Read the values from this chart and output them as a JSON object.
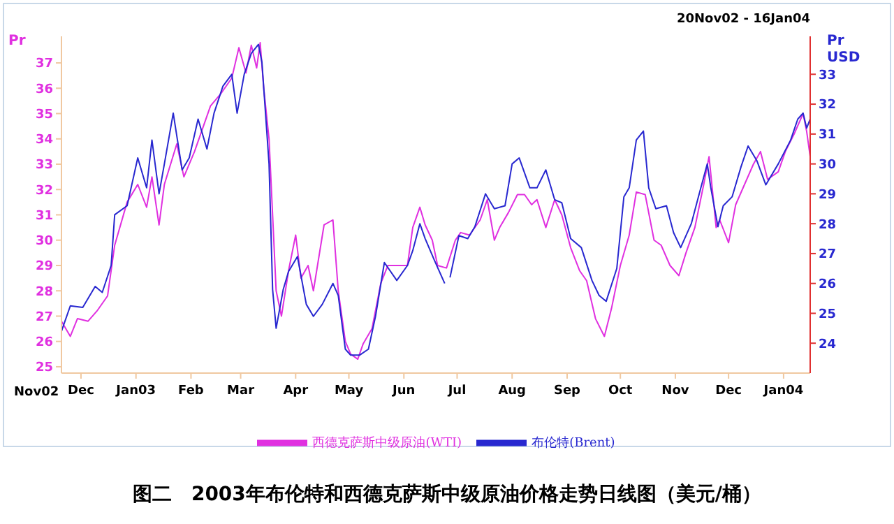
{
  "chart_data": {
    "type": "line",
    "title": "图二　2003年布伦特和西德克萨斯中级原油价格走势日线图（美元/桶）",
    "annotations": [
      "20Nov02 - 16Jan04",
      "Nov02"
    ],
    "ylabel": "Pr",
    "y2label": "Pr USD",
    "xlim": [
      "2002-11-20",
      "2004-01-16"
    ],
    "xticks": [
      {
        "value": "2002-12-01",
        "label": "Dec"
      },
      {
        "value": "2003-01-01",
        "label": "Jan03"
      },
      {
        "value": "2003-02-01",
        "label": "Feb"
      },
      {
        "value": "2003-03-01",
        "label": "Mar"
      },
      {
        "value": "2003-04-01",
        "label": "Apr"
      },
      {
        "value": "2003-05-01",
        "label": "May"
      },
      {
        "value": "2003-06-01",
        "label": "Jun"
      },
      {
        "value": "2003-07-01",
        "label": "Jul"
      },
      {
        "value": "2003-08-01",
        "label": "Aug"
      },
      {
        "value": "2003-09-01",
        "label": "Sep"
      },
      {
        "value": "2003-10-01",
        "label": "Oct"
      },
      {
        "value": "2003-11-01",
        "label": "Nov"
      },
      {
        "value": "2003-12-01",
        "label": "Dec"
      },
      {
        "value": "2004-01-01",
        "label": "Jan04"
      }
    ],
    "ylim": [
      24.75,
      38.05
    ],
    "yticks": [
      25,
      26,
      27,
      28,
      29,
      30,
      31,
      32,
      33,
      34,
      35,
      36,
      37
    ],
    "y2lim": [
      23.0,
      34.27
    ],
    "y2ticks": [
      24,
      25,
      26,
      27,
      28,
      29,
      30,
      31,
      32,
      33
    ],
    "grid": false,
    "legend": "bottom",
    "marker": "none",
    "line_style": "solid",
    "series": [
      {
        "name": "西德克萨斯中级原油(WTI)",
        "color": "#e030e0",
        "x": [
          "2002-11-20",
          "2002-11-25",
          "2002-11-29",
          "2002-12-05",
          "2002-12-10",
          "2002-12-16",
          "2002-12-20",
          "2002-12-27",
          "2003-01-02",
          "2003-01-07",
          "2003-01-10",
          "2003-01-14",
          "2003-01-17",
          "2003-01-24",
          "2003-01-28",
          "2003-02-03",
          "2003-02-07",
          "2003-02-12",
          "2003-02-18",
          "2003-02-24",
          "2003-02-28",
          "2003-03-04",
          "2003-03-07",
          "2003-03-10",
          "2003-03-12",
          "2003-03-14",
          "2003-03-17",
          "2003-03-19",
          "2003-03-21",
          "2003-03-24",
          "2003-03-28",
          "2003-04-01",
          "2003-04-04",
          "2003-04-08",
          "2003-04-11",
          "2003-04-17",
          "2003-04-22",
          "2003-04-25",
          "2003-04-29",
          "2003-05-02",
          "2003-05-06",
          "2003-05-09",
          "2003-05-14",
          "2003-05-19",
          "2003-05-23",
          "2003-05-28",
          "2003-06-03",
          "2003-06-06",
          "2003-06-10",
          "2003-06-13",
          "2003-06-17",
          "2003-06-20",
          "2003-06-25",
          "2003-06-30",
          "2003-07-03",
          "2003-07-08",
          "2003-07-14",
          "2003-07-18",
          "2003-07-22",
          "2003-07-25",
          "2003-07-30",
          "2003-08-04",
          "2003-08-08",
          "2003-08-12",
          "2003-08-15",
          "2003-08-20",
          "2003-08-25",
          "2003-08-29",
          "2003-09-03",
          "2003-09-08",
          "2003-09-12",
          "2003-09-17",
          "2003-09-22",
          "2003-09-26",
          "2003-10-01",
          "2003-10-06",
          "2003-10-10",
          "2003-10-15",
          "2003-10-20",
          "2003-10-24",
          "2003-10-29",
          "2003-11-03",
          "2003-11-07",
          "2003-11-12",
          "2003-11-17",
          "2003-11-20",
          "2003-11-24",
          "2003-11-26",
          "2003-12-01",
          "2003-12-05",
          "2003-12-10",
          "2003-12-15",
          "2003-12-19",
          "2003-12-23",
          "2003-12-29",
          "2004-01-02",
          "2004-01-07",
          "2004-01-12",
          "2004-01-14",
          "2004-01-16"
        ],
        "values": [
          26.8,
          26.2,
          26.9,
          26.8,
          27.2,
          27.8,
          29.8,
          31.5,
          32.2,
          31.3,
          32.5,
          30.6,
          32.2,
          33.8,
          32.5,
          33.5,
          34.3,
          35.3,
          35.8,
          36.4,
          37.6,
          36.6,
          37.7,
          36.8,
          37.8,
          36.0,
          34.0,
          31.0,
          28.0,
          27.0,
          28.8,
          30.2,
          28.5,
          29.0,
          28.0,
          30.6,
          30.8,
          28.0,
          26.0,
          25.5,
          25.3,
          25.9,
          26.5,
          28.3,
          29.0,
          29.0,
          29.0,
          30.5,
          31.3,
          30.6,
          30.0,
          29.0,
          28.9,
          30.0,
          30.3,
          30.2,
          30.8,
          31.6,
          30.0,
          30.5,
          31.1,
          31.8,
          31.8,
          31.4,
          31.6,
          30.5,
          31.6,
          31.0,
          29.7,
          28.8,
          28.4,
          26.9,
          26.2,
          27.3,
          29.0,
          30.2,
          31.9,
          31.8,
          30.0,
          29.8,
          29.0,
          28.6,
          29.5,
          30.5,
          32.2,
          33.3,
          30.5,
          30.8,
          29.9,
          31.4,
          32.2,
          33.0,
          33.5,
          32.4,
          32.7,
          33.5,
          34.2,
          35.0,
          34.3,
          33.3
        ]
      },
      {
        "name": "布伦特(Brent)",
        "color": "#2828d0",
        "axis": "y2",
        "x": [
          "2002-11-20",
          "2002-11-25",
          "2002-12-02",
          "2002-12-09",
          "2002-12-13",
          "2002-12-18",
          "2002-12-20",
          "2002-12-27",
          "2003-01-02",
          "2003-01-07",
          "2003-01-10",
          "2003-01-14",
          "2003-01-17",
          "2003-01-22",
          "2003-01-27",
          "2003-01-31",
          "2003-02-05",
          "2003-02-10",
          "2003-02-14",
          "2003-02-19",
          "2003-02-24",
          "2003-02-27",
          "2003-03-03",
          "2003-03-07",
          "2003-03-11",
          "2003-03-13",
          "2003-03-17",
          "2003-03-19",
          "2003-03-21",
          "2003-03-25",
          "2003-03-28",
          "2003-04-02",
          "2003-04-07",
          "2003-04-11",
          "2003-04-16",
          "2003-04-22",
          "2003-04-25",
          "2003-04-29",
          "2003-05-02",
          "2003-05-07",
          "2003-05-12",
          "2003-05-16",
          "2003-05-21",
          "2003-05-28",
          "2003-06-03",
          "2003-06-06",
          "2003-06-10",
          "2003-06-13",
          "2003-06-18",
          "2003-06-24",
          "2003-06-25",
          "2003-06-27",
          "2003-07-02",
          "2003-07-07",
          "2003-07-11",
          "2003-07-17",
          "2003-07-22",
          "2003-07-28",
          "2003-08-01",
          "2003-08-05",
          "2003-08-11",
          "2003-08-15",
          "2003-08-20",
          "2003-08-25",
          "2003-08-29",
          "2003-09-03",
          "2003-09-09",
          "2003-09-15",
          "2003-09-19",
          "2003-09-23",
          "2003-09-29",
          "2003-10-03",
          "2003-10-06",
          "2003-10-10",
          "2003-10-14",
          "2003-10-17",
          "2003-10-21",
          "2003-10-27",
          "2003-10-31",
          "2003-11-04",
          "2003-11-10",
          "2003-11-14",
          "2003-11-19",
          "2003-11-21",
          "2003-11-25",
          "2003-11-28",
          "2003-12-03",
          "2003-12-08",
          "2003-12-12",
          "2003-12-17",
          "2003-12-22",
          "2003-12-29",
          "2004-01-05",
          "2004-01-09",
          "2004-01-12",
          "2004-01-14",
          "2004-01-16"
        ],
        "values": [
          24.4,
          25.25,
          25.2,
          25.9,
          25.7,
          26.6,
          28.3,
          28.6,
          30.2,
          29.2,
          30.8,
          29.0,
          30.0,
          31.7,
          29.8,
          30.2,
          31.5,
          30.5,
          31.7,
          32.6,
          33.0,
          31.7,
          33.0,
          33.7,
          34.0,
          33.4,
          30.0,
          25.8,
          24.5,
          25.8,
          26.4,
          26.9,
          25.3,
          24.9,
          25.3,
          26.0,
          25.6,
          23.8,
          23.6,
          23.6,
          23.8,
          24.9,
          26.7,
          26.1,
          26.6,
          27.1,
          28.0,
          27.5,
          26.8,
          26.0,
          null,
          26.2,
          27.6,
          27.5,
          27.9,
          29.0,
          28.5,
          28.6,
          30.0,
          30.2,
          29.2,
          29.2,
          29.8,
          28.8,
          28.7,
          27.5,
          27.2,
          26.1,
          25.6,
          25.4,
          26.5,
          28.9,
          29.2,
          30.8,
          31.1,
          29.2,
          28.5,
          28.6,
          27.7,
          27.2,
          28.0,
          28.9,
          30.0,
          29.2,
          27.9,
          28.6,
          28.9,
          29.9,
          30.6,
          30.1,
          29.3,
          30.0,
          30.8,
          31.5,
          31.7,
          31.2,
          31.5
        ]
      }
    ]
  }
}
